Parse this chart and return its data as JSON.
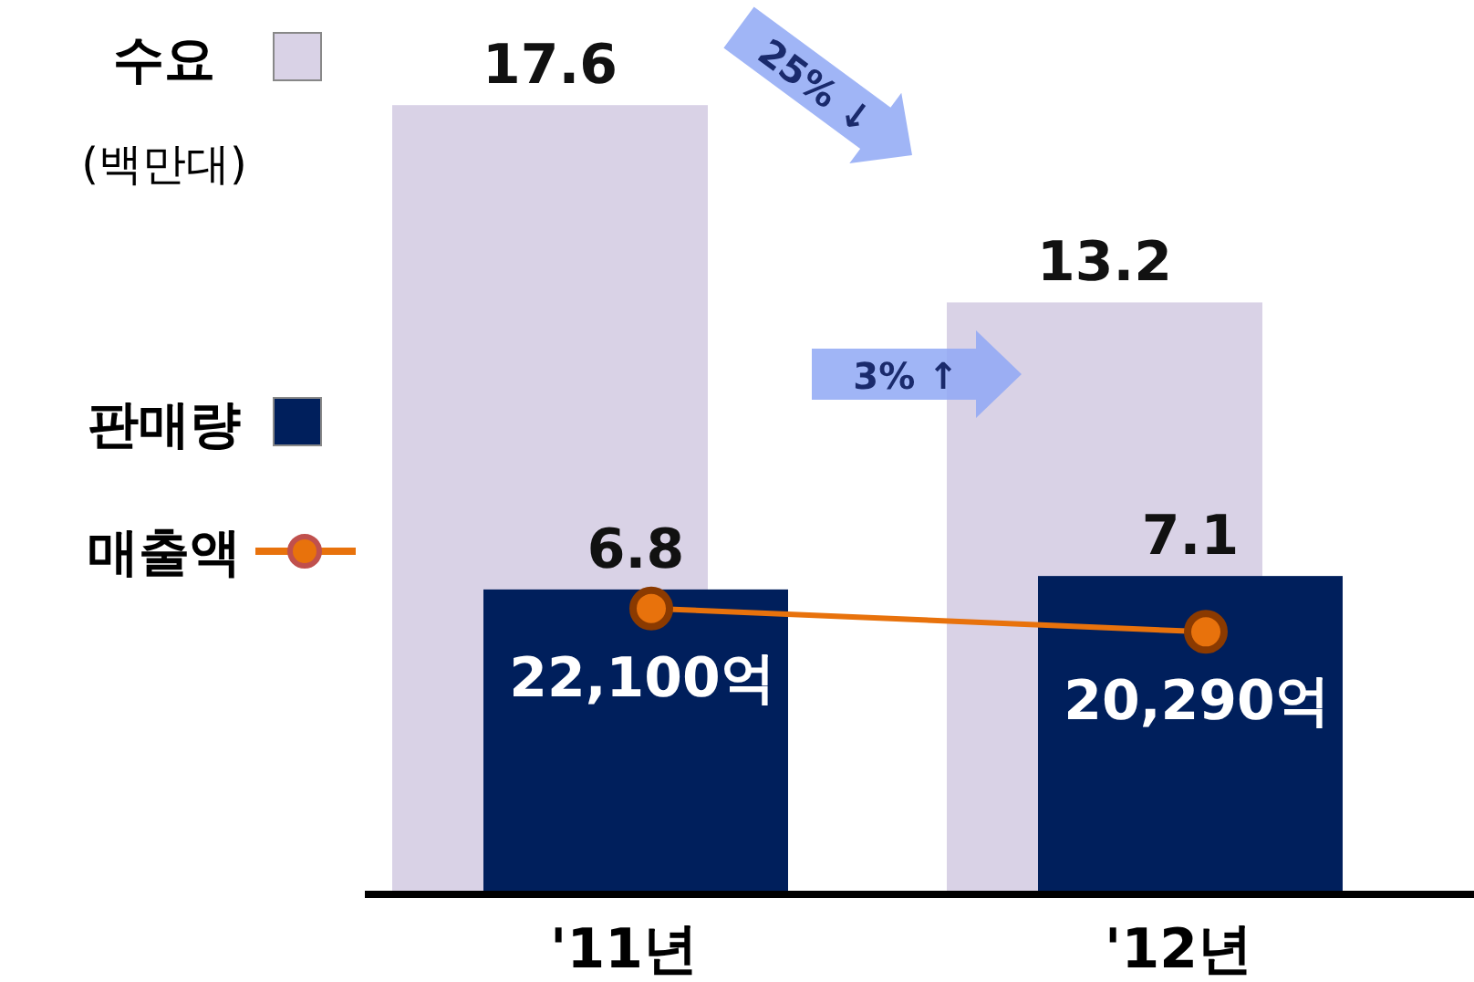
{
  "chart_data": {
    "type": "bar",
    "ylabel": "(백만대)",
    "categories": [
      "'11년",
      "'12년"
    ],
    "data_labels": true,
    "legend": "left",
    "marker": "circle",
    "series": [
      {
        "name": "수요",
        "color": "#d9d2e6",
        "values": [
          17.6,
          13.2
        ]
      },
      {
        "name": "판매량",
        "color": "#001f5c",
        "values": [
          6.8,
          7.1
        ]
      },
      {
        "name": "매출액",
        "type": "line",
        "axis": "y2",
        "color": "#e8720c",
        "values": [
          22100,
          20290
        ],
        "value_labels": [
          "22,100억",
          "20,290억"
        ]
      }
    ],
    "annotations": [
      "25% ↓",
      "3% ↑"
    ]
  }
}
